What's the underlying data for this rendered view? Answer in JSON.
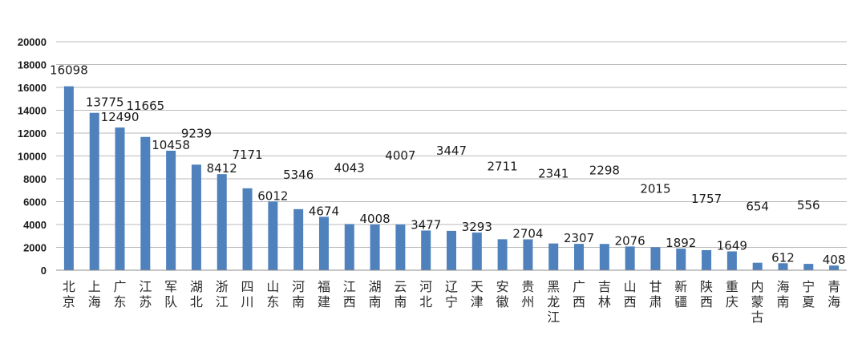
{
  "chart_data": {
    "type": "bar",
    "title": "",
    "xlabel": "",
    "ylabel": "",
    "ylim": [
      0,
      20000
    ],
    "yticks": [
      0,
      2000,
      4000,
      6000,
      8000,
      10000,
      12000,
      14000,
      16000,
      18000,
      20000
    ],
    "grid": true,
    "legend": "none",
    "bar_color": "#4f81bd",
    "categories": [
      "北京",
      "上海",
      "广东",
      "江苏",
      "军队",
      "湖北",
      "浙江",
      "四川",
      "山东",
      "河南",
      "福建",
      "江西",
      "湖南",
      "云南",
      "河北",
      "辽宁",
      "天津",
      "安徽",
      "贵州",
      "黑龙江",
      "广西",
      "吉林",
      "山西",
      "甘肃",
      "新疆",
      "陕西",
      "重庆",
      "内蒙古",
      "海南",
      "宁夏",
      "青海"
    ],
    "values": [
      16098,
      13775,
      12490,
      11665,
      10458,
      9239,
      8412,
      7171,
      6012,
      5346,
      4674,
      4043,
      4008,
      4007,
      3477,
      3447,
      3293,
      2711,
      2704,
      2341,
      2307,
      2298,
      2076,
      2015,
      1892,
      1757,
      1649,
      654,
      612,
      556,
      408
    ],
    "data_labels": [
      "16098",
      "13775",
      "12490",
      "11665",
      "10458",
      "9239",
      "8412",
      "7171",
      "6012",
      "5346",
      "4674",
      "4043",
      "4008",
      "4007",
      "3477",
      "3447",
      "3293",
      "2711",
      "2704",
      "2341",
      "2307",
      "2298",
      "2076",
      "2015",
      "1892",
      "1757",
      "1649",
      "654",
      "612",
      "556",
      "408"
    ]
  }
}
